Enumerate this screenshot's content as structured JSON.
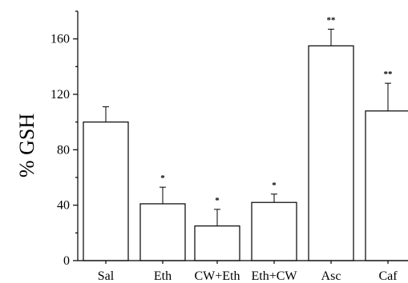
{
  "chart_data": {
    "type": "bar",
    "categories": [
      "Sal",
      "Eth",
      "CW+Eth",
      "Eth+CW",
      "Asc",
      "Caf"
    ],
    "values": [
      100,
      41,
      25,
      42,
      155,
      108
    ],
    "errors": [
      11,
      12,
      12,
      6,
      12,
      20
    ],
    "significance": [
      "",
      "*",
      "*",
      "*",
      "**",
      "**"
    ],
    "ylabel": "% GSH",
    "ylim": [
      0,
      180
    ],
    "yticks": [
      0,
      40,
      80,
      120,
      160
    ],
    "grid": false,
    "colors": {
      "bar_fill": "#ffffff",
      "stroke": "#000000"
    }
  }
}
